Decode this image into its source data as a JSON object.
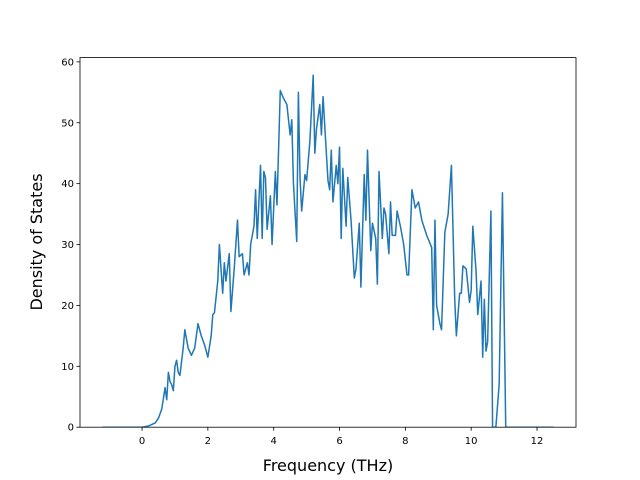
{
  "chart_data": {
    "type": "line",
    "xlabel": "Frequency (THz)",
    "ylabel": "Density of States",
    "x": [
      -1.2,
      0,
      0.2,
      0.4,
      0.5,
      0.6,
      0.7,
      0.75,
      0.8,
      0.85,
      0.9,
      0.95,
      1.0,
      1.05,
      1.1,
      1.15,
      1.25,
      1.3,
      1.4,
      1.5,
      1.6,
      1.7,
      1.8,
      1.9,
      2.0,
      2.1,
      2.15,
      2.2,
      2.3,
      2.35,
      2.4,
      2.45,
      2.5,
      2.55,
      2.65,
      2.7,
      2.8,
      2.9,
      2.95,
      3.05,
      3.1,
      3.2,
      3.25,
      3.3,
      3.4,
      3.45,
      3.5,
      3.6,
      3.65,
      3.7,
      3.75,
      3.8,
      3.9,
      3.95,
      4.05,
      4.1,
      4.2,
      4.3,
      4.4,
      4.5,
      4.55,
      4.6,
      4.7,
      4.75,
      4.8,
      4.85,
      4.95,
      5.0,
      5.1,
      5.2,
      5.25,
      5.3,
      5.4,
      5.45,
      5.5,
      5.6,
      5.65,
      5.7,
      5.75,
      5.8,
      5.9,
      5.95,
      6.0,
      6.05,
      6.1,
      6.2,
      6.25,
      6.35,
      6.45,
      6.5,
      6.6,
      6.65,
      6.75,
      6.8,
      6.85,
      6.95,
      7.0,
      7.1,
      7.15,
      7.2,
      7.3,
      7.35,
      7.4,
      7.5,
      7.55,
      7.6,
      7.7,
      7.75,
      7.85,
      7.95,
      8.05,
      8.1,
      8.2,
      8.3,
      8.4,
      8.5,
      8.65,
      8.8,
      8.85,
      8.9,
      8.95,
      9.05,
      9.1,
      9.2,
      9.3,
      9.4,
      9.5,
      9.55,
      9.65,
      9.7,
      9.75,
      9.85,
      9.95,
      10.0,
      10.05,
      10.15,
      10.2,
      10.3,
      10.35,
      10.4,
      10.45,
      10.5,
      10.6,
      10.65,
      10.75,
      10.85,
      10.95,
      11.05,
      12.5
    ],
    "series": [
      {
        "color": "#1f77b4",
        "values": [
          0,
          0,
          0.2,
          0.7,
          1.5,
          3,
          6.5,
          4.5,
          9,
          7.5,
          7,
          6,
          10,
          11,
          9,
          8.5,
          13,
          16,
          13,
          11.8,
          13,
          17,
          15,
          13.5,
          11.5,
          15,
          18.5,
          18.8,
          24,
          30,
          26,
          22,
          27,
          24,
          28.5,
          19,
          26,
          34,
          28,
          28.5,
          25,
          27,
          25,
          30,
          33,
          39,
          31,
          43,
          31,
          42,
          41,
          32.5,
          38,
          30,
          42,
          36.5,
          55.3,
          54,
          53,
          48,
          50.5,
          40,
          30.5,
          55,
          41,
          35.5,
          41.5,
          40.5,
          47,
          57.8,
          45,
          49,
          53,
          48,
          54.3,
          45,
          40.5,
          39,
          45.5,
          37,
          43,
          40,
          46,
          31,
          42.5,
          33,
          41,
          34,
          24.5,
          26,
          33.5,
          23,
          41.5,
          34,
          45.5,
          29,
          33.5,
          31,
          23.5,
          42,
          31,
          36,
          35,
          28.5,
          37,
          31.5,
          31.5,
          35.5,
          33,
          30,
          25,
          25,
          39,
          36,
          37,
          34,
          31.5,
          29.5,
          16,
          34,
          20,
          17,
          16,
          32,
          35,
          43,
          21,
          15,
          22,
          22,
          26.5,
          26,
          20.5,
          22.5,
          33,
          25.5,
          18.5,
          24,
          11.5,
          21,
          12.5,
          14,
          35.5,
          0,
          0,
          7,
          38.5,
          0,
          0
        ]
      }
    ],
    "xlim": [
      -1.885,
      13.185
    ],
    "xticks": [
      0,
      2,
      4,
      6,
      8,
      10,
      12
    ],
    "ylim": [
      0,
      60.7
    ],
    "yticks": [
      0,
      10,
      20,
      30,
      40,
      50,
      60
    ]
  }
}
